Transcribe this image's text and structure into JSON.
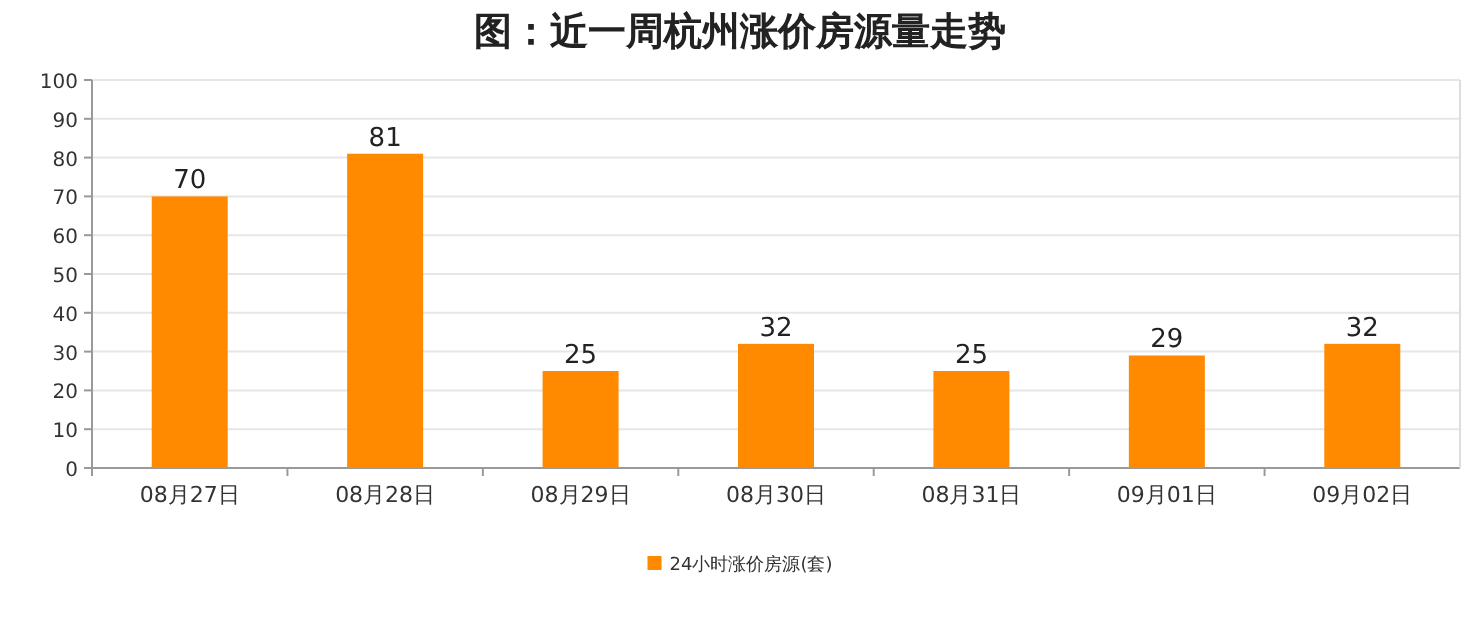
{
  "chart_data": {
    "type": "bar",
    "title": "图：近一周杭州涨价房源量走势",
    "categories": [
      "08月27日",
      "08月28日",
      "08月29日",
      "08月30日",
      "08月31日",
      "09月01日",
      "09月02日"
    ],
    "series": [
      {
        "name": "24小时涨价房源(套)",
        "color": "#ff8a00",
        "values": [
          70,
          81,
          25,
          32,
          25,
          29,
          32
        ]
      }
    ],
    "ylim": [
      0,
      100
    ],
    "yticks": [
      0,
      10,
      20,
      30,
      40,
      50,
      60,
      70,
      80,
      90,
      100
    ],
    "grid": "y",
    "legend": "bottom",
    "data_labels": true
  }
}
